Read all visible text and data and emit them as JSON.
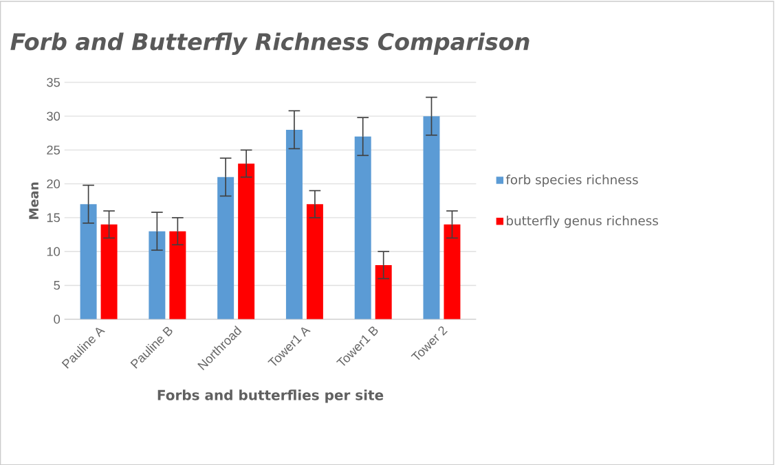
{
  "chart_data": {
    "type": "bar",
    "title": "Forb and Butterfly Richness Comparison",
    "xlabel": "Forbs and butterflies per site",
    "ylabel": "Mean",
    "categories": [
      "Pauline A",
      "Pauline B",
      "Northroad",
      "Tower1 A",
      "Tower1 B",
      "Tower 2"
    ],
    "series": [
      {
        "name": "forb species richness",
        "color": "#5b9bd5",
        "values": [
          17,
          13,
          21,
          28,
          27,
          30
        ],
        "errors": [
          2.8,
          2.8,
          2.8,
          2.8,
          2.8,
          2.8
        ]
      },
      {
        "name": "butterfly genus richness",
        "color": "#ff0000",
        "values": [
          14,
          13,
          23,
          17,
          8,
          14
        ],
        "errors": [
          2,
          2,
          2,
          2,
          2,
          2
        ]
      }
    ],
    "ylim": [
      0,
      35
    ],
    "yticks": [
      0,
      5,
      10,
      15,
      20,
      25,
      30,
      35
    ],
    "grid": "y",
    "legend": "right"
  }
}
